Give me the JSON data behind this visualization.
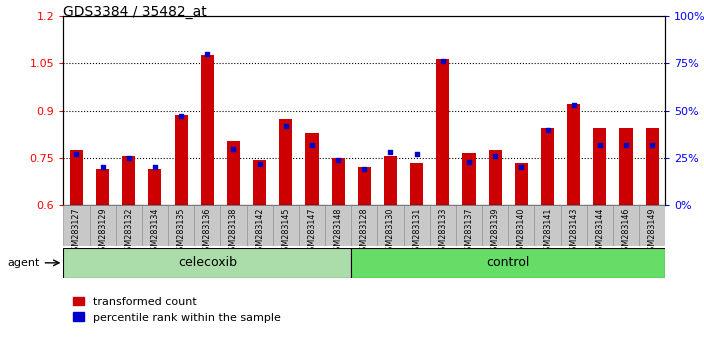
{
  "title": "GDS3384 / 35482_at",
  "samples": [
    "GSM283127",
    "GSM283129",
    "GSM283132",
    "GSM283134",
    "GSM283135",
    "GSM283136",
    "GSM283138",
    "GSM283142",
    "GSM283145",
    "GSM283147",
    "GSM283148",
    "GSM283128",
    "GSM283130",
    "GSM283131",
    "GSM283133",
    "GSM283137",
    "GSM283139",
    "GSM283140",
    "GSM283141",
    "GSM283143",
    "GSM283144",
    "GSM283146",
    "GSM283149"
  ],
  "red_values": [
    0.775,
    0.715,
    0.755,
    0.715,
    0.885,
    1.075,
    0.805,
    0.745,
    0.875,
    0.83,
    0.75,
    0.72,
    0.755,
    0.735,
    1.065,
    0.765,
    0.775,
    0.735,
    0.845,
    0.92,
    0.845,
    0.845,
    0.845
  ],
  "blue_values": [
    27,
    20,
    25,
    20,
    47,
    80,
    30,
    22,
    42,
    32,
    24,
    19,
    28,
    27,
    76,
    23,
    26,
    20,
    40,
    53,
    32,
    32,
    32
  ],
  "celecoxib_count": 11,
  "control_count": 12,
  "ylim_left": [
    0.6,
    1.2
  ],
  "ylim_right": [
    0,
    100
  ],
  "yticks_left": [
    0.6,
    0.75,
    0.9,
    1.05,
    1.2
  ],
  "yticks_right": [
    0,
    25,
    50,
    75,
    100
  ],
  "ytick_labels_left": [
    "0.6",
    "0.75",
    "0.9",
    "1.05",
    "1.2"
  ],
  "ytick_labels_right": [
    "0%",
    "25%",
    "50%",
    "75%",
    "100%"
  ],
  "hlines": [
    0.75,
    0.9,
    1.05
  ],
  "bar_color": "#cc0000",
  "marker_color": "#0000cc",
  "celecoxib_color": "#aaddaa",
  "control_color": "#66dd66",
  "xtick_bg": "#c8c8c8",
  "agent_label": "agent",
  "celecoxib_label": "celecoxib",
  "control_label": "control",
  "legend_red": "transformed count",
  "legend_blue": "percentile rank within the sample"
}
